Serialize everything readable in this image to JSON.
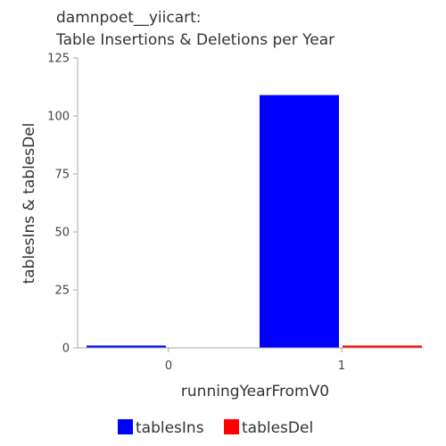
{
  "chart_data": {
    "type": "bar",
    "title_lines": [
      "damnpoet__yiicart:",
      "Table Insertions & Deletions per Year"
    ],
    "xlabel": "runningYearFromV0",
    "ylabel": "tablesIns & tablesDel",
    "categories": [
      "0",
      "1"
    ],
    "series": [
      {
        "name": "tablesIns",
        "color": "#0000ff",
        "values": [
          1,
          109
        ]
      },
      {
        "name": "tablesDel",
        "color": "#ff0000",
        "values": [
          0,
          1
        ]
      }
    ],
    "ylim": [
      0,
      125
    ],
    "yticks": [
      0,
      25,
      50,
      75,
      100,
      125
    ],
    "grid": false,
    "legend_position": "bottom"
  }
}
